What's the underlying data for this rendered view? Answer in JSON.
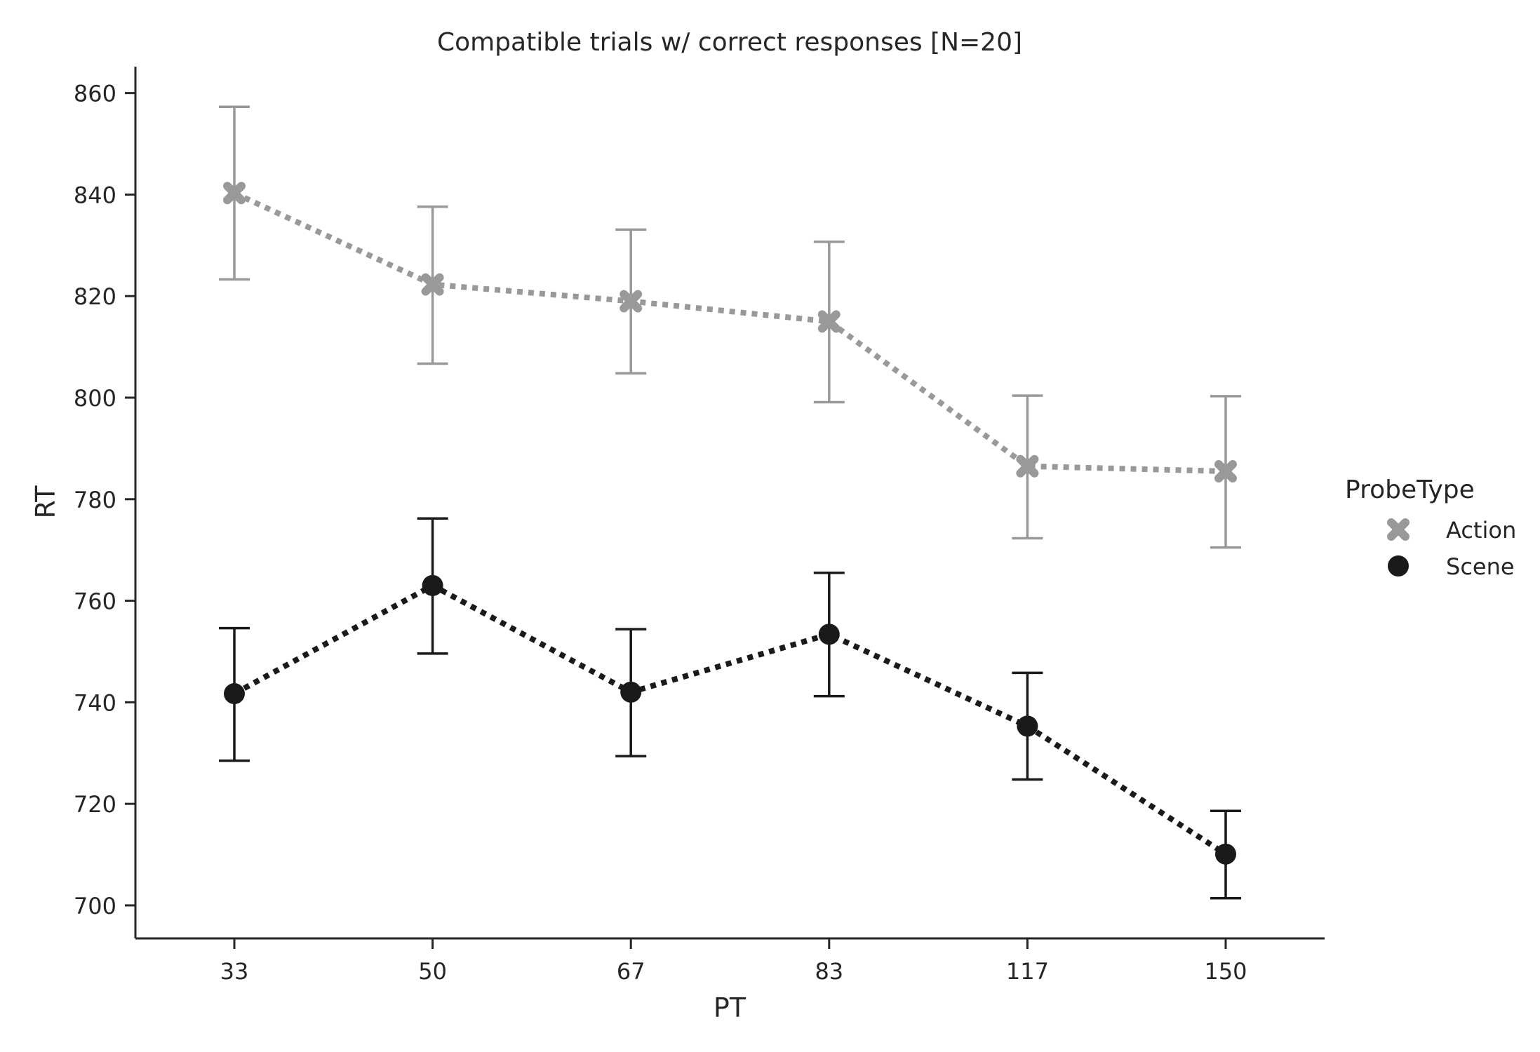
{
  "chart_data": {
    "type": "line",
    "title": "Compatible trials w/ correct responses [N=20]",
    "xlabel": "PT",
    "ylabel": "RT",
    "categories": [
      "33",
      "50",
      "67",
      "83",
      "117",
      "150"
    ],
    "yticks": [
      "700",
      "720",
      "740",
      "760",
      "780",
      "800",
      "820",
      "840",
      "860"
    ],
    "ylim": [
      693.5,
      865.2
    ],
    "grid": false,
    "legend": {
      "title": "ProbeType",
      "placement": "right"
    },
    "series": [
      {
        "name": "Action",
        "marker": "x",
        "color": "#999999",
        "values": [
          840.3,
          822.3,
          819.0,
          815.0,
          786.5,
          785.5
        ],
        "ci_low": [
          823.3,
          806.7,
          804.8,
          799.1,
          772.3,
          770.5
        ],
        "ci_high": [
          857.3,
          837.6,
          833.1,
          830.7,
          800.4,
          800.3
        ]
      },
      {
        "name": "Scene",
        "marker": "o",
        "color": "#1a1a1a",
        "values": [
          741.7,
          763.0,
          742.0,
          753.4,
          735.3,
          710.1
        ],
        "ci_low": [
          728.5,
          749.6,
          729.4,
          741.2,
          724.8,
          701.4
        ],
        "ci_high": [
          754.6,
          776.2,
          754.4,
          765.5,
          745.8,
          718.6
        ]
      }
    ]
  }
}
